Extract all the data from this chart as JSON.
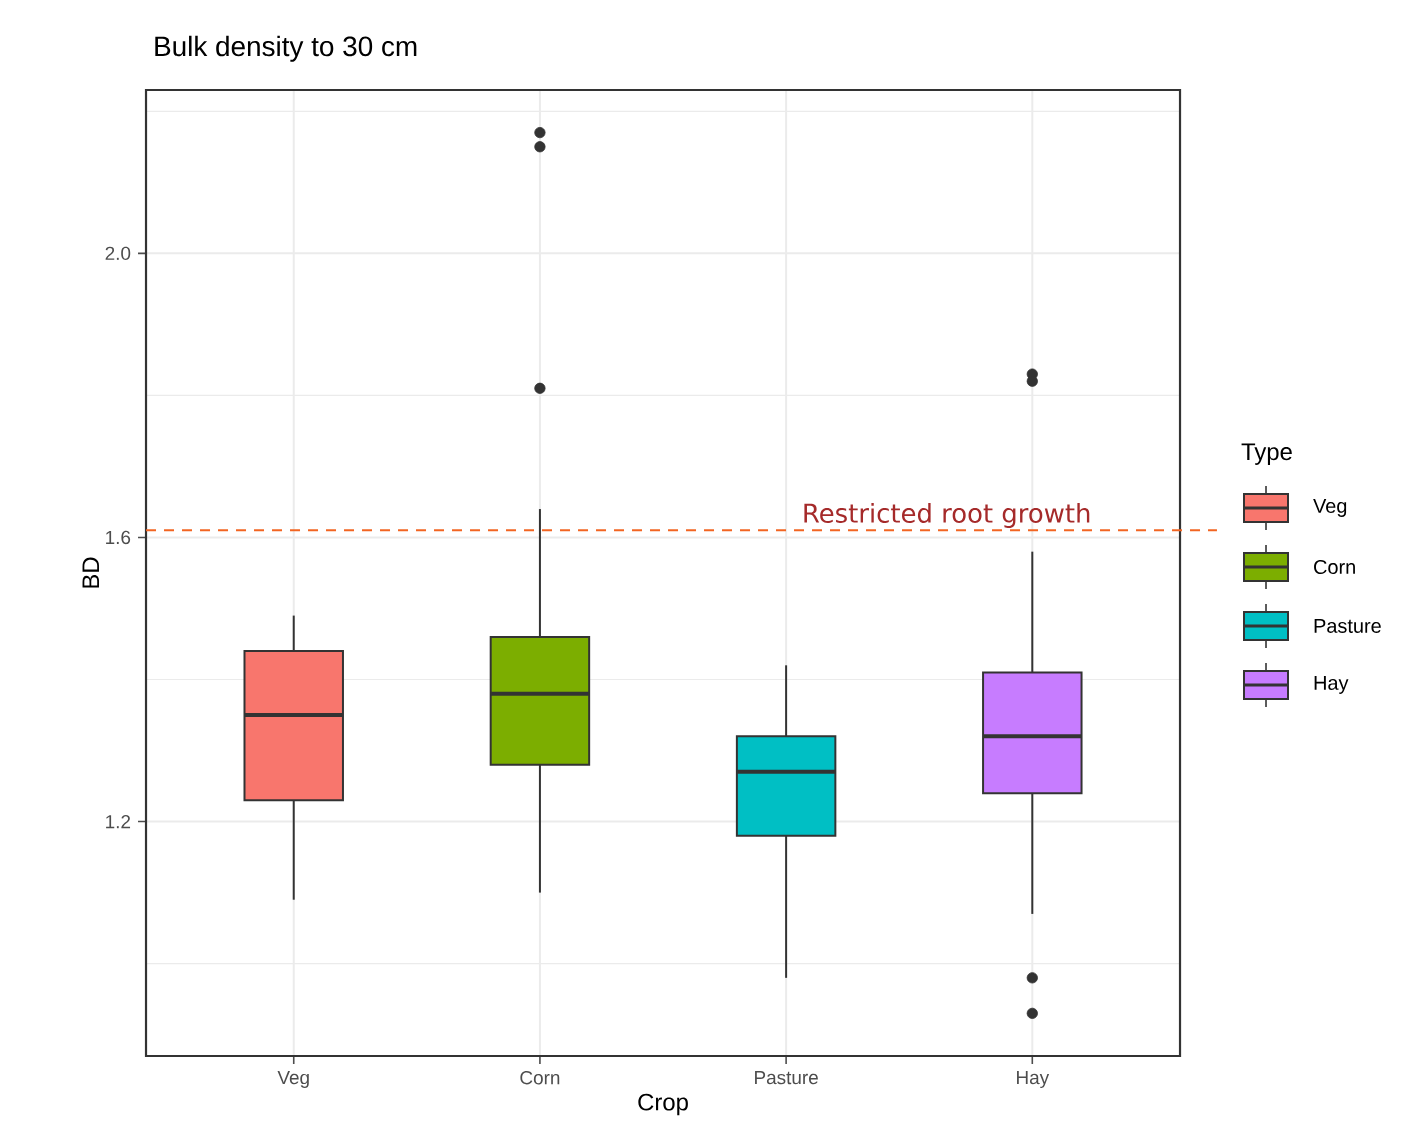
{
  "chart_data": {
    "type": "box",
    "title": "Bulk density to 30 cm",
    "xlabel": "Crop",
    "ylabel": "BD",
    "legend_title": "Type",
    "categories": [
      "Veg",
      "Corn",
      "Pasture",
      "Hay"
    ],
    "colors": [
      "#f8766d",
      "#7cae00",
      "#00bfc4",
      "#c77cff"
    ],
    "boxes": [
      {
        "low": 1.09,
        "q1": 1.23,
        "median": 1.35,
        "q3": 1.44,
        "high": 1.49
      },
      {
        "low": 1.1,
        "q1": 1.28,
        "median": 1.38,
        "q3": 1.46,
        "high": 1.64,
        "outliers": [
          2.17,
          2.15,
          1.81
        ]
      },
      {
        "low": 0.98,
        "q1": 1.18,
        "median": 1.27,
        "q3": 1.32,
        "high": 1.42
      },
      {
        "low": 1.07,
        "q1": 1.24,
        "median": 1.32,
        "q3": 1.41,
        "high": 1.58,
        "outliers": [
          1.83,
          1.82,
          0.98,
          0.93
        ]
      }
    ],
    "ylim": [
      0.87,
      2.23
    ],
    "yticks": [
      {
        "value": 1.0,
        "label": null
      },
      {
        "value": 1.2,
        "label": "1.2"
      },
      {
        "value": 1.4,
        "label": null
      },
      {
        "value": 1.6,
        "label": "1.6"
      },
      {
        "value": 1.8,
        "label": null
      },
      {
        "value": 2.0,
        "label": "2.0"
      },
      {
        "value": 2.2,
        "label": null
      }
    ],
    "grid": true,
    "legend": "right",
    "ref_lines": [
      {
        "axis": "y",
        "value": 1.61,
        "label": "Restricted root growth",
        "color": "#f26522",
        "line_style": "dashed"
      }
    ]
  }
}
